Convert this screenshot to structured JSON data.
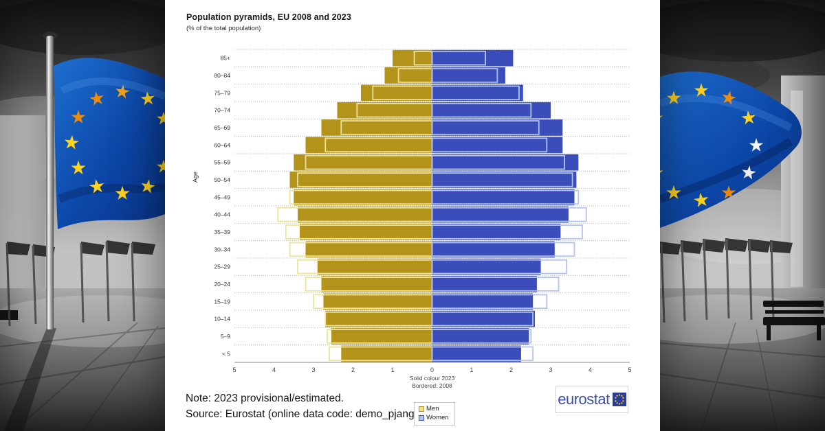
{
  "header": {
    "title": "Population pyramids, EU 2008 and 2023",
    "subtitle": "(% of the total population)"
  },
  "chart_data": {
    "type": "bar",
    "variant": "population-pyramid",
    "title": "Population pyramids, EU 2008 and 2023",
    "unit": "% of the total population",
    "ylabel": "Age",
    "grid": true,
    "legend_position": "bottom-center",
    "age_groups": [
      "< 5",
      "5–9",
      "10–14",
      "15–19",
      "20–24",
      "25–29",
      "30–34",
      "35–39",
      "40–44",
      "45–49",
      "50–54",
      "55–59",
      "60–64",
      "65–69",
      "70–74",
      "75–79",
      "80–84",
      "85+"
    ],
    "x_ticks": [
      5,
      4,
      3,
      2,
      1,
      0,
      1,
      2,
      3,
      4,
      5
    ],
    "xlim_per_side": [
      0,
      5
    ],
    "series": [
      {
        "name": "Men 2023",
        "sex": "Men",
        "year": 2023,
        "side": "left",
        "style": "solid",
        "values": [
          2.3,
          2.55,
          2.7,
          2.75,
          2.8,
          2.9,
          3.2,
          3.35,
          3.4,
          3.5,
          3.6,
          3.5,
          3.2,
          2.8,
          2.4,
          1.8,
          1.2,
          1.0
        ]
      },
      {
        "name": "Men 2008",
        "sex": "Men",
        "year": 2008,
        "side": "left",
        "style": "bordered",
        "values": [
          2.6,
          2.65,
          2.7,
          3.0,
          3.2,
          3.4,
          3.6,
          3.7,
          3.9,
          3.6,
          3.4,
          3.2,
          2.7,
          2.3,
          1.9,
          1.5,
          0.85,
          0.45
        ]
      },
      {
        "name": "Women 2023",
        "sex": "Women",
        "year": 2023,
        "side": "right",
        "style": "solid",
        "values": [
          2.25,
          2.45,
          2.6,
          2.55,
          2.65,
          2.75,
          3.1,
          3.25,
          3.45,
          3.6,
          3.65,
          3.7,
          3.3,
          3.3,
          3.0,
          2.3,
          1.85,
          2.05
        ]
      },
      {
        "name": "Women 2008",
        "sex": "Women",
        "year": 2008,
        "side": "right",
        "style": "bordered",
        "values": [
          2.55,
          2.5,
          2.55,
          2.9,
          3.2,
          3.4,
          3.6,
          3.8,
          3.9,
          3.7,
          3.55,
          3.35,
          2.9,
          2.7,
          2.5,
          2.2,
          1.65,
          1.35
        ]
      }
    ],
    "annotations": [
      "Solid colour 2023",
      "Bordered: 2008"
    ],
    "colors": {
      "men_solid": "#B3931A",
      "men_border": "#EFE39A",
      "women_solid": "#3A4DBA",
      "women_border": "#B2C3F0",
      "grid": "#b4b4b4",
      "axis": "#8a8a8a",
      "label": "#333333"
    }
  },
  "legend": {
    "items": [
      {
        "label": "Men"
      },
      {
        "label": "Women"
      }
    ]
  },
  "notes": {
    "note": "Note: 2023 provisional/estimated.",
    "source": "Source: Eurostat (online data code: demo_pjangroup)"
  },
  "logo": {
    "text": "eurostat",
    "text_color": "#3E4FA5",
    "square_color": "#2A3B9C",
    "star_color": "#FFD21E"
  }
}
